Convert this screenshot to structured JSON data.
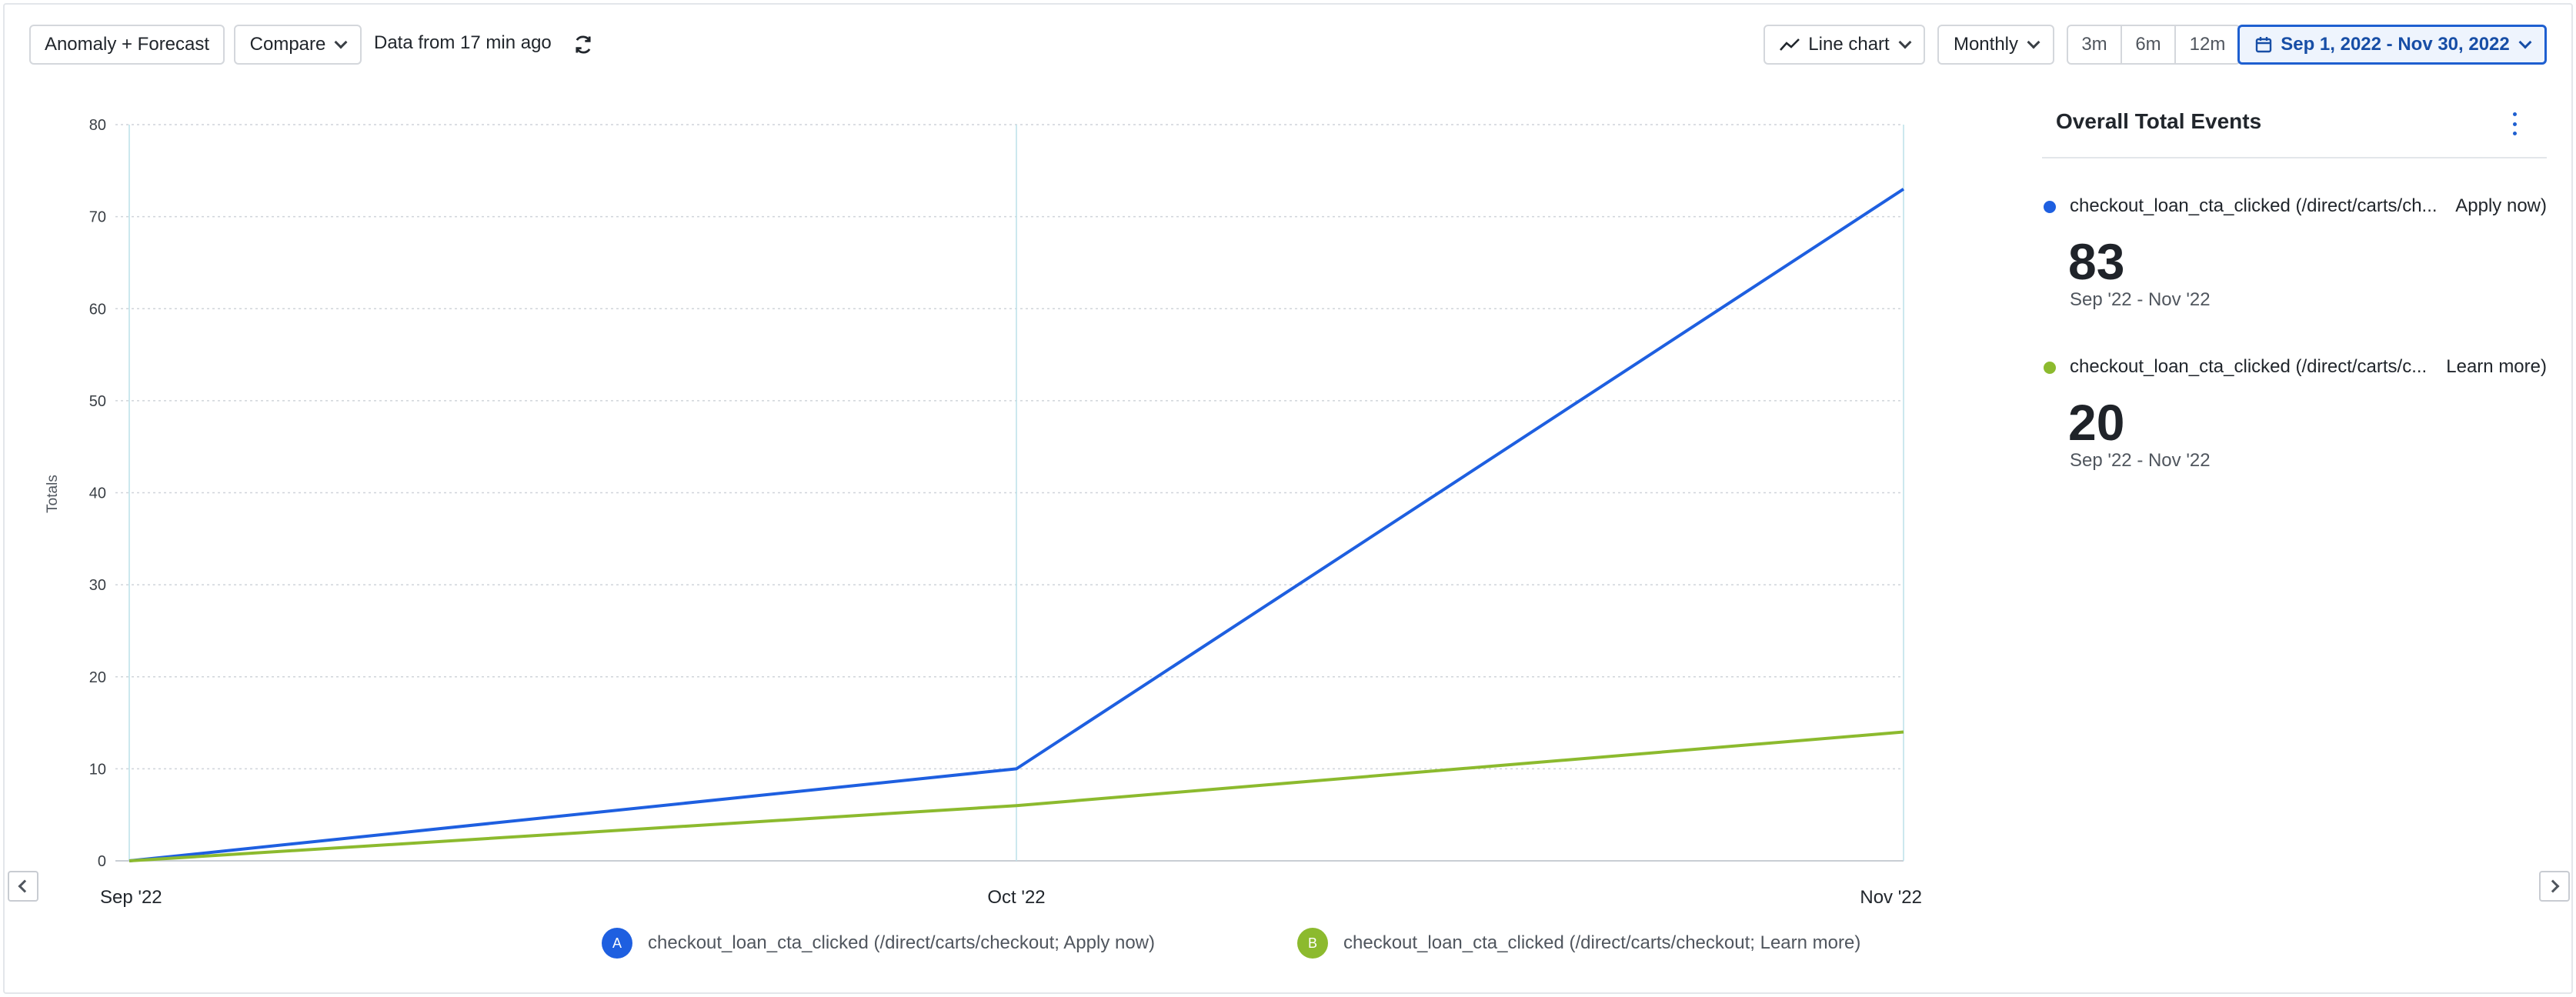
{
  "toolbar": {
    "anomaly_label": "Anomaly + Forecast",
    "compare_label": "Compare",
    "data_freshness": "Data from 17 min ago",
    "chart_type_label": "Line chart",
    "interval_label": "Monthly",
    "ranges": [
      "3m",
      "6m",
      "12m"
    ],
    "date_range_label": "Sep 1, 2022 - Nov 30, 2022"
  },
  "chart_data": {
    "type": "line",
    "x": [
      "Sep '22",
      "Oct '22",
      "Nov '22"
    ],
    "ylabel": "Totals",
    "ylim": [
      0,
      80
    ],
    "yticks": [
      0,
      10,
      20,
      30,
      40,
      50,
      60,
      70,
      80
    ],
    "grid": true,
    "series": [
      {
        "name": "checkout_loan_cta_clicked (/direct/carts/checkout; Apply now)",
        "badge": "A",
        "color": "#1e5fe0",
        "values": [
          0,
          10,
          73
        ]
      },
      {
        "name": "checkout_loan_cta_clicked (/direct/carts/checkout; Learn more)",
        "badge": "B",
        "color": "#8cba2e",
        "values": [
          0,
          6,
          14
        ]
      }
    ]
  },
  "legend": [
    {
      "badge": "A",
      "label": "checkout_loan_cta_clicked (/direct/carts/checkout; Apply now)",
      "color": "#1e5fe0"
    },
    {
      "badge": "B",
      "label": "checkout_loan_cta_clicked (/direct/carts/checkout; Learn more)",
      "color": "#8cba2e"
    }
  ],
  "panel": {
    "title": "Overall Total Events",
    "metrics": [
      {
        "name": "checkout_loan_cta_clicked (/direct/carts/ch...",
        "suffix": "Apply now)",
        "value": "83",
        "range": "Sep '22 - Nov '22",
        "color": "#1e5fe0"
      },
      {
        "name": "checkout_loan_cta_clicked (/direct/carts/c...",
        "suffix": "Learn more)",
        "value": "20",
        "range": "Sep '22 - Nov '22",
        "color": "#8cba2e"
      }
    ]
  }
}
